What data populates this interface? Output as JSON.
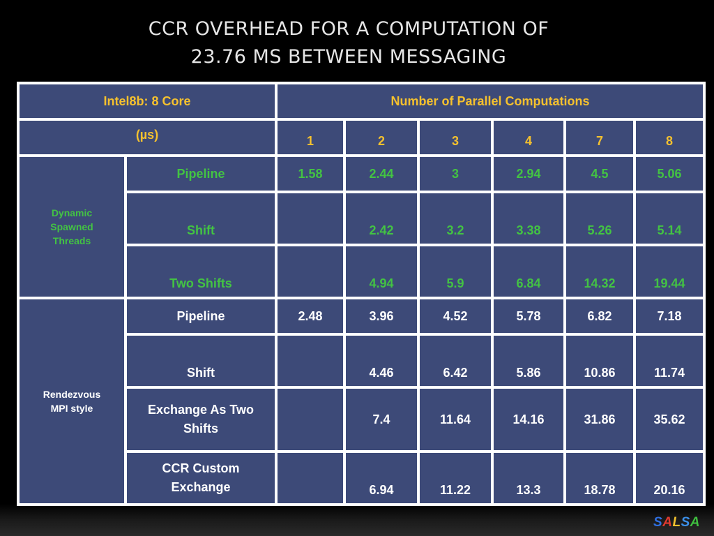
{
  "title": {
    "line1": "CCR OVERHEAD FOR A COMPUTATION OF",
    "line2": "23.76 MS BETWEEN MESSAGING"
  },
  "table": {
    "machine_label": "Intel8b: 8 Core",
    "group_header": "Number of Parallel Computations",
    "unit_label": "(µs)",
    "columns": [
      "1",
      "2",
      "3",
      "4",
      "7",
      "8"
    ],
    "sections": [
      {
        "label": "Dynamic Spawned Threads",
        "rows": [
          {
            "label": "Pipeline",
            "values": [
              "1.58",
              "2.44",
              "3",
              "2.94",
              "4.5",
              "5.06"
            ]
          },
          {
            "label": "Shift",
            "values": [
              "",
              "2.42",
              "3.2",
              "3.38",
              "5.26",
              "5.14"
            ]
          },
          {
            "label": "Two Shifts",
            "values": [
              "",
              "4.94",
              "5.9",
              "6.84",
              "14.32",
              "19.44"
            ]
          }
        ]
      },
      {
        "label": "Rendezvous MPI style",
        "rows": [
          {
            "label": "Pipeline",
            "values": [
              "2.48",
              "3.96",
              "4.52",
              "5.78",
              "6.82",
              "7.18"
            ]
          },
          {
            "label": "Shift",
            "values": [
              "",
              "4.46",
              "6.42",
              "5.86",
              "10.86",
              "11.74"
            ]
          },
          {
            "label": "Exchange As Two Shifts",
            "values": [
              "",
              "7.4",
              "11.64",
              "14.16",
              "31.86",
              "35.62"
            ]
          },
          {
            "label": "CCR Custom Exchange",
            "values": [
              "",
              "6.94",
              "11.22",
              "13.3",
              "18.78",
              "20.16"
            ]
          }
        ]
      }
    ]
  },
  "logo": {
    "letters": [
      {
        "char": "S",
        "color": "#2f6fe0"
      },
      {
        "char": "A",
        "color": "#e03a2f"
      },
      {
        "char": "L",
        "color": "#f2c12e"
      },
      {
        "char": "S",
        "color": "#3b8fe8"
      },
      {
        "char": "A",
        "color": "#3fbf3f"
      }
    ]
  },
  "colors": {
    "cell_background": "#3d4a78",
    "header_text": "#f5c12e",
    "dynamic_text": "#43c343",
    "mpi_text": "#ffffff"
  }
}
